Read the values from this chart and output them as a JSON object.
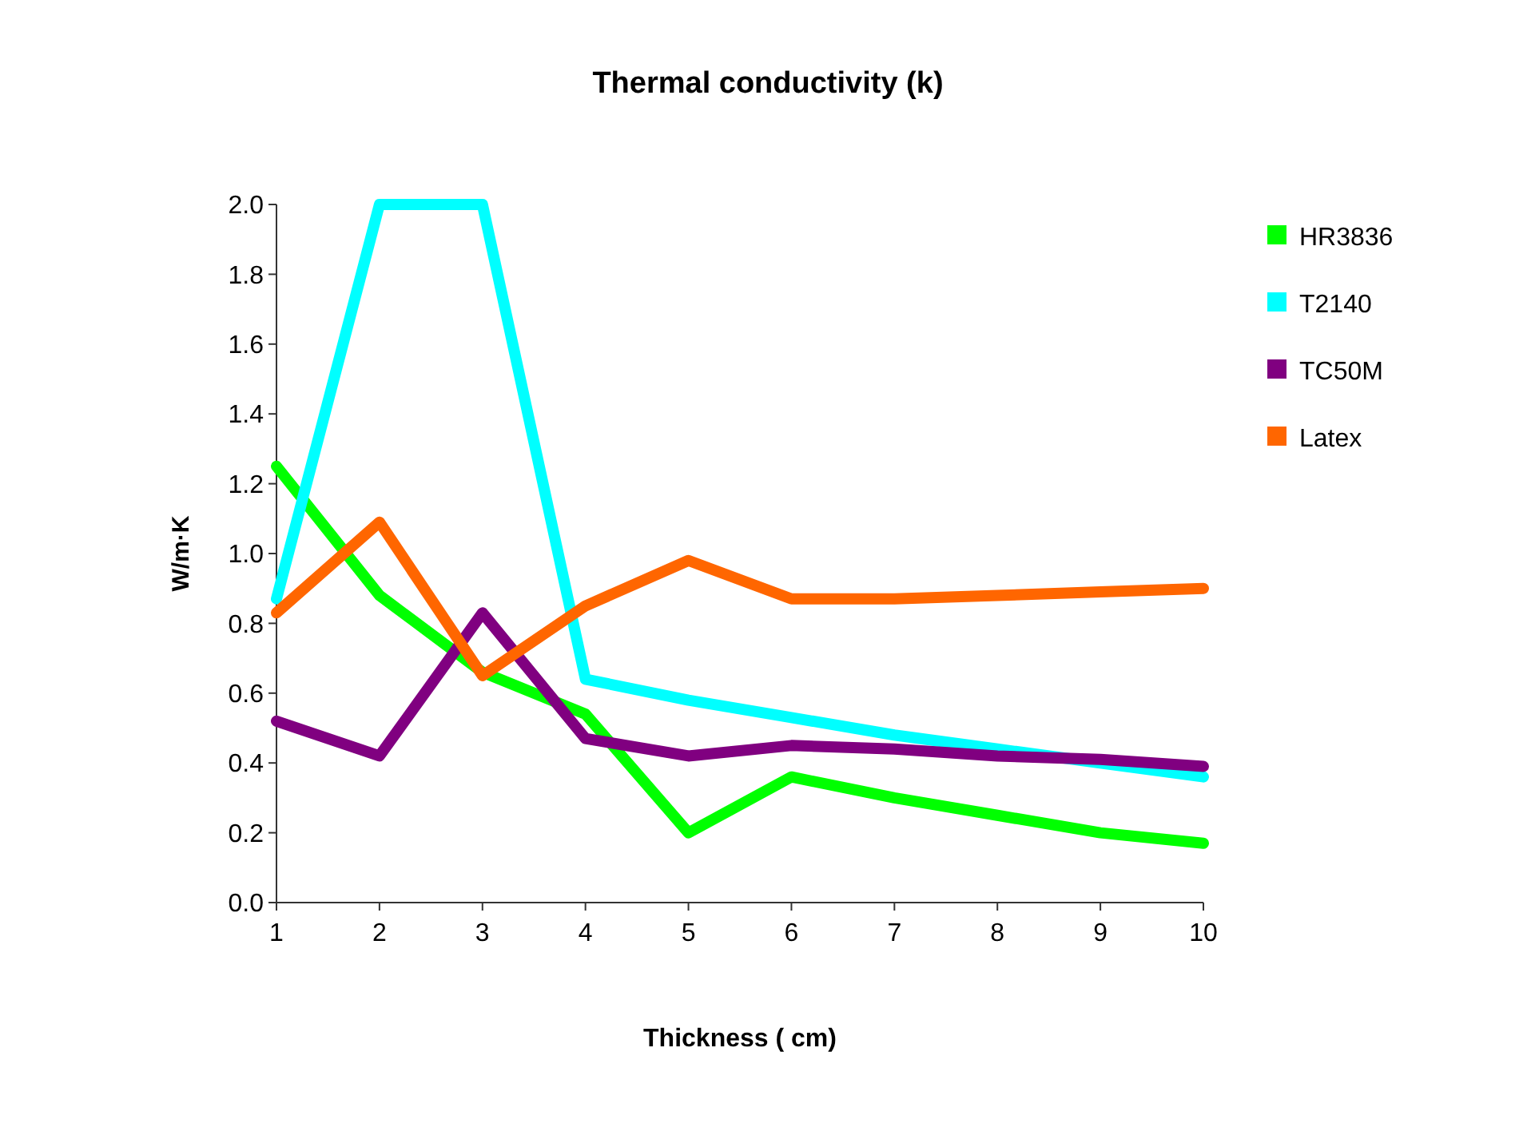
{
  "chart_data": {
    "type": "line",
    "title": "Thermal conductivity (k)",
    "xlabel": "Thickness ( cm)",
    "ylabel": "W/m·K",
    "x": [
      1,
      2,
      3,
      4,
      5,
      6,
      7,
      8,
      9,
      10
    ],
    "series": [
      {
        "name": "HR3836",
        "color": "#00ff00",
        "values": [
          1.25,
          0.88,
          0.66,
          0.54,
          0.2,
          0.36,
          0.3,
          0.25,
          0.2,
          0.17
        ]
      },
      {
        "name": "T2140",
        "color": "#00ffff",
        "values": [
          0.87,
          2.0,
          2.0,
          0.64,
          0.58,
          0.53,
          0.48,
          0.44,
          0.4,
          0.36
        ]
      },
      {
        "name": "TC50M",
        "color": "#800080",
        "values": [
          0.52,
          0.42,
          0.83,
          0.47,
          0.42,
          0.45,
          0.44,
          0.42,
          0.41,
          0.39
        ]
      },
      {
        "name": "Latex",
        "color": "#ff6600",
        "values": [
          0.83,
          1.09,
          0.65,
          0.85,
          0.98,
          0.87,
          0.87,
          0.88,
          0.89,
          0.9
        ]
      }
    ],
    "xlim": [
      1,
      10
    ],
    "xticks": [
      1,
      2,
      3,
      4,
      5,
      6,
      7,
      8,
      9,
      10
    ],
    "ylim": [
      0,
      2.0
    ],
    "yticks": [
      {
        "value": 0,
        "label": "0.0"
      },
      {
        "value": 0.2,
        "label": "0.2"
      },
      {
        "value": 0.4,
        "label": "0.4"
      },
      {
        "value": 0.6,
        "label": "0.6"
      },
      {
        "value": 0.8,
        "label": "0.8"
      },
      {
        "value": 1.0,
        "label": "1.0"
      },
      {
        "value": 1.2,
        "label": "1.2"
      },
      {
        "value": 1.4,
        "label": "1.4"
      },
      {
        "value": 1.6,
        "label": "1.6"
      },
      {
        "value": 1.8,
        "label": "1.8"
      },
      {
        "value": 2.0,
        "label": "2.0"
      }
    ],
    "legend": "top right",
    "grid": false,
    "marker": "none",
    "line_style": "solid"
  }
}
